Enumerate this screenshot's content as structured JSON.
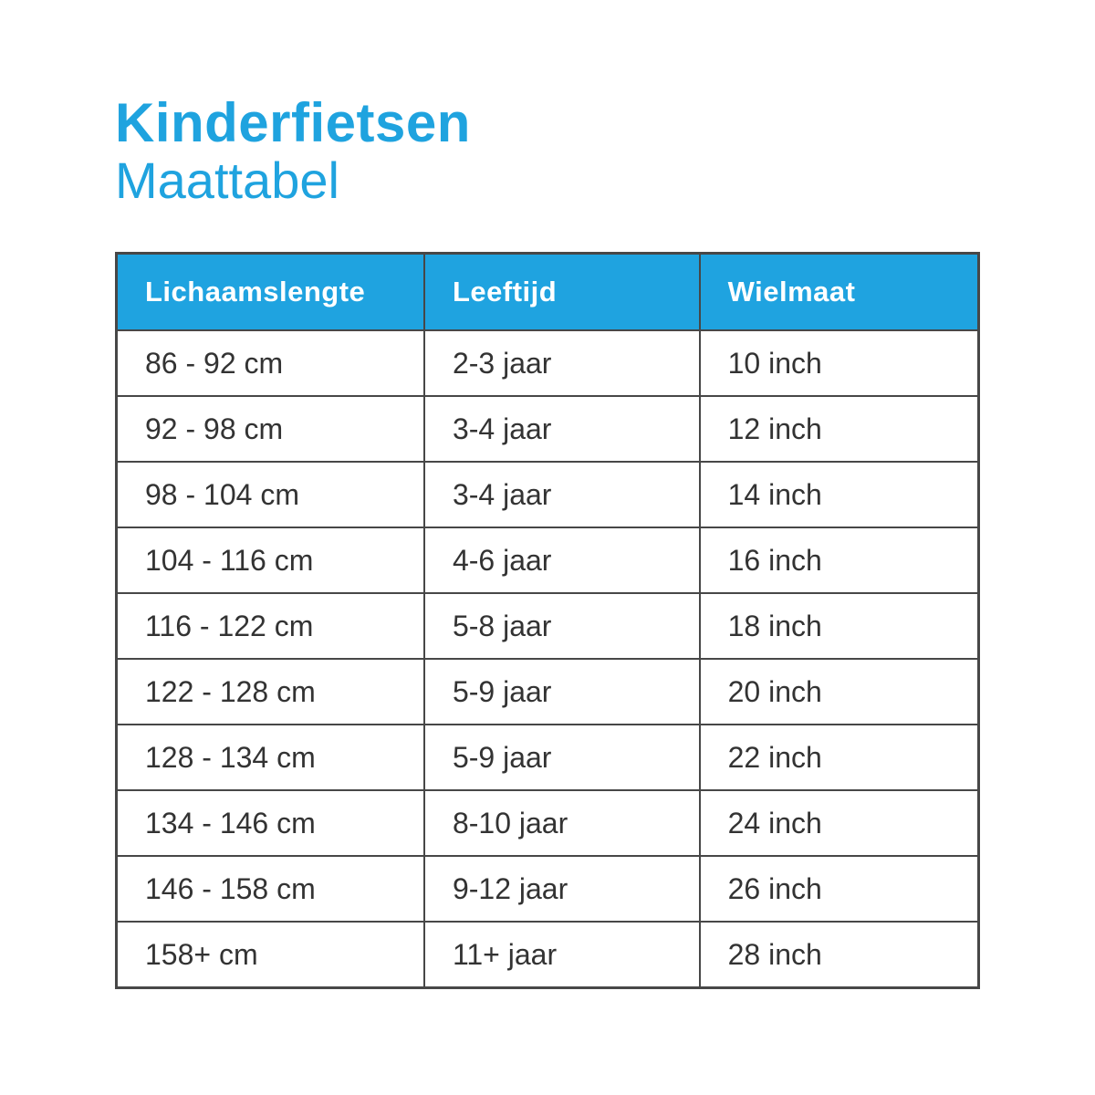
{
  "title": "Kinderfietsen",
  "subtitle": "Maattabel",
  "colors": {
    "accent": "#1fa3e0",
    "border": "#474747",
    "text": "#333333"
  },
  "table": {
    "headers": [
      "Lichaamslengte",
      "Leeftijd",
      "Wielmaat"
    ],
    "rows": [
      [
        "86 - 92 cm",
        "2-3 jaar",
        "10 inch"
      ],
      [
        "92 - 98 cm",
        "3-4 jaar",
        "12 inch"
      ],
      [
        "98 - 104 cm",
        "3-4 jaar",
        "14 inch"
      ],
      [
        "104 - 116 cm",
        "4-6 jaar",
        "16 inch"
      ],
      [
        "116 - 122 cm",
        "5-8 jaar",
        "18 inch"
      ],
      [
        "122 - 128 cm",
        "5-9 jaar",
        "20 inch"
      ],
      [
        "128 - 134 cm",
        "5-9 jaar",
        "22 inch"
      ],
      [
        "134 - 146 cm",
        "8-10 jaar",
        "24 inch"
      ],
      [
        "146 - 158 cm",
        "9-12 jaar",
        "26 inch"
      ],
      [
        "158+ cm",
        "11+ jaar",
        "28 inch"
      ]
    ]
  }
}
